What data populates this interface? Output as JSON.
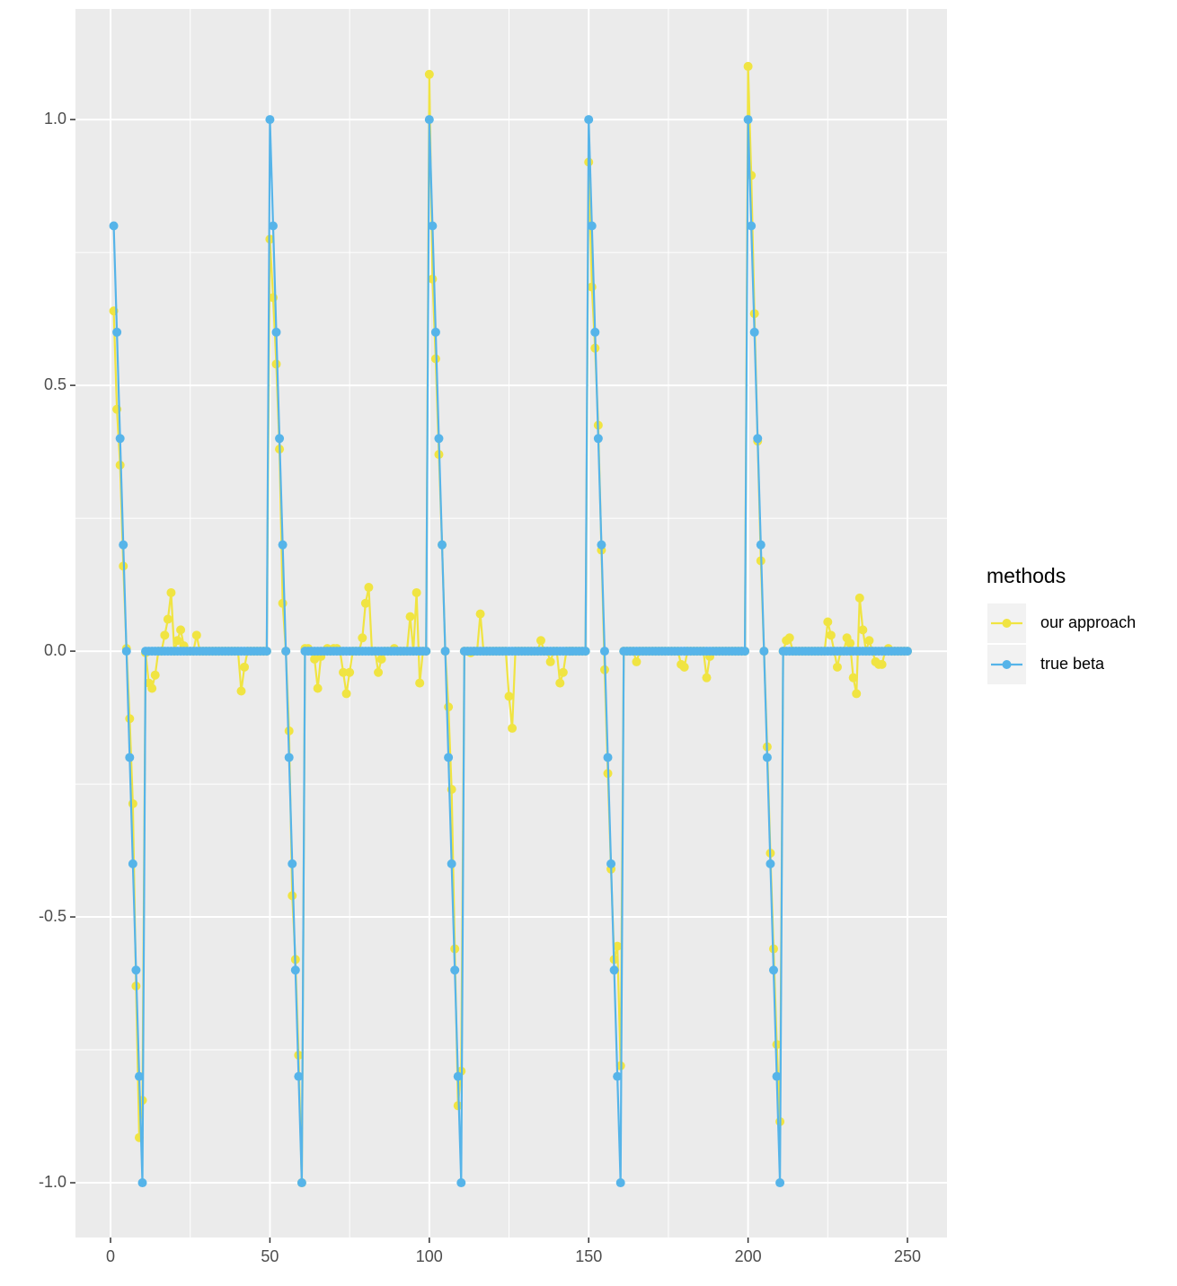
{
  "chart_data": {
    "type": "line",
    "legend_title": "methods",
    "x": [
      1,
      2,
      3,
      4,
      5,
      6,
      7,
      8,
      9,
      10,
      11,
      12,
      13,
      14,
      15,
      16,
      17,
      18,
      19,
      20,
      21,
      22,
      23,
      24,
      25,
      26,
      27,
      28,
      29,
      30,
      31,
      32,
      33,
      34,
      35,
      36,
      37,
      38,
      39,
      40,
      41,
      42,
      43,
      44,
      45,
      46,
      47,
      48,
      49,
      50,
      51,
      52,
      53,
      54,
      55,
      56,
      57,
      58,
      59,
      60,
      61,
      62,
      63,
      64,
      65,
      66,
      67,
      68,
      69,
      70,
      71,
      72,
      73,
      74,
      75,
      76,
      77,
      78,
      79,
      80,
      81,
      82,
      83,
      84,
      85,
      86,
      87,
      88,
      89,
      90,
      91,
      92,
      93,
      94,
      95,
      96,
      97,
      98,
      99,
      100,
      101,
      102,
      103,
      104,
      105,
      106,
      107,
      108,
      109,
      110,
      111,
      112,
      113,
      114,
      115,
      116,
      117,
      118,
      119,
      120,
      121,
      122,
      123,
      124,
      125,
      126,
      127,
      128,
      129,
      130,
      131,
      132,
      133,
      134,
      135,
      136,
      137,
      138,
      139,
      140,
      141,
      142,
      143,
      144,
      145,
      146,
      147,
      148,
      149,
      150,
      151,
      152,
      153,
      154,
      155,
      156,
      157,
      158,
      159,
      160,
      161,
      162,
      163,
      164,
      165,
      166,
      167,
      168,
      169,
      170,
      171,
      172,
      173,
      174,
      175,
      176,
      177,
      178,
      179,
      180,
      181,
      182,
      183,
      184,
      185,
      186,
      187,
      188,
      189,
      190,
      191,
      192,
      193,
      194,
      195,
      196,
      197,
      198,
      199,
      200,
      201,
      202,
      203,
      204,
      205,
      206,
      207,
      208,
      209,
      210,
      211,
      212,
      213,
      214,
      215,
      216,
      217,
      218,
      219,
      220,
      221,
      222,
      223,
      224,
      225,
      226,
      227,
      228,
      229,
      230,
      231,
      232,
      233,
      234,
      235,
      236,
      237,
      238,
      239,
      240,
      241,
      242,
      243,
      244,
      245,
      246,
      247,
      248,
      249,
      250
    ],
    "series": [
      {
        "name": "our approach",
        "color": "#F0E442",
        "values": [
          0.64,
          0.455,
          0.35,
          0.16,
          0.005,
          -0.127,
          -0.287,
          -0.63,
          -0.915,
          -0.845,
          -0.003,
          -0.06,
          -0.07,
          -0.045,
          0,
          0,
          0.03,
          0.06,
          0.11,
          0,
          0.02,
          0.04,
          0.01,
          0,
          0,
          0,
          0.03,
          0,
          0,
          0,
          0,
          0,
          0,
          0,
          0,
          0,
          0,
          0,
          0,
          0,
          -0.075,
          -0.03,
          0,
          0,
          0,
          0,
          0,
          0,
          0,
          0.775,
          0.665,
          0.54,
          0.38,
          0.09,
          0,
          -0.15,
          -0.46,
          -0.58,
          -0.76,
          -1,
          0.005,
          0.005,
          0,
          -0.015,
          -0.07,
          -0.01,
          0,
          0.005,
          0,
          0.005,
          0.005,
          0,
          -0.04,
          -0.08,
          -0.04,
          0,
          0,
          0,
          0.025,
          0.09,
          0.12,
          0,
          0,
          -0.04,
          -0.015,
          0,
          0,
          0,
          0.005,
          0,
          0,
          0,
          0,
          0.065,
          0,
          0.11,
          -0.06,
          0,
          0,
          1.085,
          0.7,
          0.55,
          0.37,
          0.2,
          0,
          -0.105,
          -0.26,
          -0.56,
          -0.855,
          -0.79,
          0,
          0,
          -0.003,
          0,
          0,
          0.07,
          0,
          0,
          0,
          0,
          0,
          0,
          0,
          0,
          -0.085,
          -0.145,
          0,
          0,
          0,
          0,
          0,
          0,
          0,
          0,
          0.02,
          0,
          0,
          -0.02,
          0,
          0,
          -0.06,
          -0.04,
          0,
          0,
          0,
          0,
          0,
          0,
          0,
          0.92,
          0.685,
          0.57,
          0.425,
          0.19,
          -0.035,
          -0.23,
          -0.41,
          -0.58,
          -0.555,
          -0.78,
          0,
          0,
          0,
          0,
          -0.02,
          0,
          0,
          0,
          0,
          0,
          0,
          0,
          0,
          0,
          0,
          0,
          0,
          0,
          -0.025,
          -0.03,
          0,
          0,
          0,
          0,
          0,
          0,
          -0.05,
          -0.01,
          0,
          0,
          0,
          0,
          0,
          0,
          0,
          0,
          0,
          0,
          0,
          1.1,
          0.895,
          0.635,
          0.395,
          0.17,
          0,
          -0.18,
          -0.38,
          -0.56,
          -0.74,
          -0.885,
          0,
          0.02,
          0.025,
          0,
          0,
          0,
          0,
          0,
          0,
          0,
          0,
          0,
          0,
          0,
          0.055,
          0.03,
          0,
          -0.03,
          0,
          0,
          0.025,
          0.015,
          -0.05,
          -0.08,
          0.1,
          0.04,
          0,
          0.02,
          0,
          -0.02,
          -0.025,
          -0.025,
          0,
          0.005,
          0,
          0,
          0,
          0,
          0,
          0
        ]
      },
      {
        "name": "true beta",
        "color": "#56B4E9",
        "values": [
          0.8,
          0.6,
          0.4,
          0.2,
          0,
          -0.2,
          -0.4,
          -0.6,
          -0.8,
          -1,
          0,
          0,
          0,
          0,
          0,
          0,
          0,
          0,
          0,
          0,
          0,
          0,
          0,
          0,
          0,
          0,
          0,
          0,
          0,
          0,
          0,
          0,
          0,
          0,
          0,
          0,
          0,
          0,
          0,
          0,
          0,
          0,
          0,
          0,
          0,
          0,
          0,
          0,
          0,
          1,
          0.8,
          0.6,
          0.4,
          0.2,
          0,
          -0.2,
          -0.4,
          -0.6,
          -0.8,
          -1,
          0,
          0,
          0,
          0,
          0,
          0,
          0,
          0,
          0,
          0,
          0,
          0,
          0,
          0,
          0,
          0,
          0,
          0,
          0,
          0,
          0,
          0,
          0,
          0,
          0,
          0,
          0,
          0,
          0,
          0,
          0,
          0,
          0,
          0,
          0,
          0,
          0,
          0,
          0,
          1,
          0.8,
          0.6,
          0.4,
          0.2,
          0,
          -0.2,
          -0.4,
          -0.6,
          -0.8,
          -1,
          0,
          0,
          0,
          0,
          0,
          0,
          0,
          0,
          0,
          0,
          0,
          0,
          0,
          0,
          0,
          0,
          0,
          0,
          0,
          0,
          0,
          0,
          0,
          0,
          0,
          0,
          0,
          0,
          0,
          0,
          0,
          0,
          0,
          0,
          0,
          0,
          0,
          0,
          0,
          1,
          0.8,
          0.6,
          0.4,
          0.2,
          0,
          -0.2,
          -0.4,
          -0.6,
          -0.8,
          -1,
          0,
          0,
          0,
          0,
          0,
          0,
          0,
          0,
          0,
          0,
          0,
          0,
          0,
          0,
          0,
          0,
          0,
          0,
          0,
          0,
          0,
          0,
          0,
          0,
          0,
          0,
          0,
          0,
          0,
          0,
          0,
          0,
          0,
          0,
          0,
          0,
          0,
          0,
          0,
          1,
          0.8,
          0.6,
          0.4,
          0.2,
          0,
          -0.2,
          -0.4,
          -0.6,
          -0.8,
          -1,
          0,
          0,
          0,
          0,
          0,
          0,
          0,
          0,
          0,
          0,
          0,
          0,
          0,
          0,
          0,
          0,
          0,
          0,
          0,
          0,
          0,
          0,
          0,
          0,
          0,
          0,
          0,
          0,
          0,
          0,
          0,
          0,
          0,
          0,
          0,
          0,
          0,
          0,
          0,
          0
        ]
      }
    ],
    "xlim": [
      -11,
      262.4
    ],
    "ylim": [
      -1.103,
      1.208
    ],
    "xticks": [
      0,
      50,
      100,
      150,
      200,
      250
    ],
    "yticks": [
      {
        "value": -1,
        "label": "-1.0"
      },
      {
        "value": -0.5,
        "label": "-0.5"
      },
      {
        "value": 0,
        "label": "0.0"
      },
      {
        "value": 0.5,
        "label": "0.5"
      },
      {
        "value": 1,
        "label": "1.0"
      }
    ],
    "grid": true
  }
}
